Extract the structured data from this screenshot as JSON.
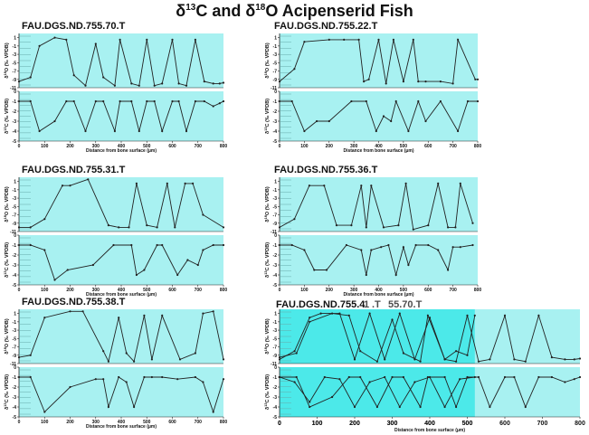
{
  "figure_title": {
    "pre": "δ",
    "sup1": "13",
    "mid": "C and δ",
    "sup2": "18",
    "post": "O Acipenserid Fish"
  },
  "colors": {
    "plot_bg": "#a8f1f1",
    "overlay_bg": "#2ee6e6",
    "line": "#222222",
    "axis": "#222222"
  },
  "chart_data": [
    {
      "type": "line",
      "title": "FAU.DGS.ND.755.70.T",
      "xlabel": "Distance from bone surface (μm)",
      "xlim": [
        0,
        800
      ],
      "x_ticks": [
        0,
        100,
        200,
        300,
        400,
        500,
        600,
        700,
        800
      ],
      "panels": [
        {
          "ylabel": "δ18O (‰ VPDB)",
          "ylim": [
            -11,
            2
          ],
          "y_ticks": [
            1,
            -1,
            -3,
            -5,
            -7,
            -9,
            -11
          ],
          "series": [
            {
              "x": [
                0,
                45,
                80,
                140,
                185,
                215,
                260,
                300,
                330,
                375,
                395,
                440,
                470,
                500,
                530,
                560,
                600,
                625,
                655,
                690,
                725,
                760,
                785,
                800
              ],
              "y": [
                -9.5,
                -8.5,
                -1,
                1,
                0.5,
                -8,
                -10.5,
                -0.5,
                -8.5,
                -10.5,
                0.5,
                -10,
                -10.5,
                0.5,
                -10.5,
                -10,
                0.5,
                -10,
                -10.5,
                0.5,
                -9.5,
                -10,
                -10,
                -9.8
              ]
            }
          ]
        },
        {
          "ylabel": "δ13C (‰ VPDB)",
          "ylim": [
            -5,
            0
          ],
          "y_ticks": [
            0,
            -1,
            -2,
            -3,
            -4,
            -5
          ],
          "series": [
            {
              "x": [
                0,
                45,
                80,
                140,
                185,
                215,
                260,
                300,
                330,
                375,
                395,
                440,
                470,
                500,
                530,
                560,
                600,
                625,
                655,
                690,
                725,
                760,
                785,
                800
              ],
              "y": [
                -1,
                -1,
                -4,
                -3,
                -1,
                -1,
                -4,
                -1,
                -1,
                -4,
                -1,
                -1,
                -4,
                -1,
                -1,
                -4,
                -1,
                -1,
                -4,
                -1,
                -1,
                -1.5,
                -1.2,
                -1
              ]
            }
          ]
        }
      ]
    },
    {
      "type": "line",
      "title": "FAU.DGS.ND.755.22.T",
      "xlabel": "Distance from bone surface (μm)",
      "xlim": [
        0,
        800
      ],
      "x_ticks": [
        0,
        100,
        200,
        300,
        400,
        500,
        600,
        700,
        800
      ],
      "panels": [
        {
          "ylabel": "δ18O (‰ VPDB)",
          "ylim": [
            -11,
            2
          ],
          "y_ticks": [
            1,
            -1,
            -3,
            -5,
            -7,
            -9,
            -11
          ],
          "series": [
            {
              "x": [
                0,
                60,
                100,
                200,
                260,
                320,
                340,
                360,
                400,
                430,
                460,
                500,
                540,
                560,
                590,
                650,
                700,
                720,
                790,
                800
              ],
              "y": [
                -9.5,
                -6.5,
                0,
                0.5,
                0.5,
                0.5,
                -9.5,
                -9,
                0.5,
                -10,
                0.5,
                -9.5,
                0.5,
                -9.5,
                -9.5,
                -9.5,
                -10,
                0.5,
                -9,
                -9
              ]
            }
          ]
        },
        {
          "ylabel": "δ13C (‰ VPDB)",
          "ylim": [
            -5,
            0
          ],
          "y_ticks": [
            0,
            -1,
            -2,
            -3,
            -4,
            -5
          ],
          "series": [
            {
              "x": [
                0,
                50,
                100,
                150,
                200,
                290,
                350,
                390,
                420,
                450,
                470,
                520,
                560,
                590,
                650,
                720,
                760,
                800
              ],
              "y": [
                -1,
                -1,
                -4,
                -3,
                -3,
                -1,
                -1,
                -4,
                -2.5,
                -3,
                -1,
                -4,
                -1,
                -3,
                -1,
                -4,
                -1,
                -1
              ]
            }
          ]
        }
      ]
    },
    {
      "type": "line",
      "title": "FAU.DGS.ND.755.31.T",
      "xlabel": "Distance from bone surface (μm)",
      "xlim": [
        0,
        800
      ],
      "x_ticks": [
        0,
        100,
        200,
        300,
        400,
        500,
        600,
        700,
        800
      ],
      "panels": [
        {
          "ylabel": "δ18O (‰ VPDB)",
          "ylim": [
            -11,
            2
          ],
          "y_ticks": [
            1,
            -1,
            -3,
            -5,
            -7,
            -9,
            -11
          ],
          "series": [
            {
              "x": [
                0,
                45,
                100,
                170,
                200,
                270,
                350,
                390,
                430,
                460,
                500,
                540,
                580,
                610,
                650,
                680,
                720,
                800
              ],
              "y": [
                -10,
                -10,
                -8,
                0,
                0,
                1.5,
                -9.5,
                -10,
                -10,
                0.5,
                -9.5,
                -10,
                0.5,
                -10,
                0.5,
                0.5,
                -7,
                -10
              ]
            }
          ]
        },
        {
          "ylabel": "δ13C (‰ VPDB)",
          "ylim": [
            -5,
            0
          ],
          "y_ticks": [
            0,
            -1,
            -2,
            -3,
            -4,
            -5
          ],
          "series": [
            {
              "x": [
                0,
                45,
                100,
                140,
                190,
                290,
                370,
                440,
                460,
                490,
                540,
                560,
                620,
                660,
                700,
                720,
                760,
                800
              ],
              "y": [
                -1,
                -1,
                -1.5,
                -4.5,
                -3.5,
                -3,
                -1,
                -1,
                -4,
                -3.5,
                -1,
                -1,
                -4,
                -2.5,
                -3,
                -1.5,
                -1,
                -1
              ]
            }
          ]
        }
      ]
    },
    {
      "type": "line",
      "title": "FAU.DGS.ND.755.36.T",
      "xlabel": "Distance from bone surface (μm)",
      "xlim": [
        0,
        800
      ],
      "x_ticks": [
        0,
        100,
        200,
        300,
        400,
        500,
        600,
        700,
        800
      ],
      "panels": [
        {
          "ylabel": "δ18O (‰ VPDB)",
          "ylim": [
            -11,
            2
          ],
          "y_ticks": [
            1,
            -1,
            -3,
            -5,
            -7,
            -9,
            -11
          ],
          "series": [
            {
              "x": [
                0,
                60,
                120,
                180,
                230,
                290,
                330,
                350,
                370,
                420,
                480,
                510,
                540,
                600,
                640,
                680,
                710,
                730,
                780
              ],
              "y": [
                -10,
                -8,
                0,
                0,
                -9.5,
                -9.5,
                0,
                -10,
                0,
                -10,
                -9.5,
                0.5,
                -10.5,
                -9.5,
                0.5,
                -10,
                -10,
                0.5,
                -9
              ]
            }
          ]
        },
        {
          "ylabel": "δ13C (‰ VPDB)",
          "ylim": [
            -5,
            0
          ],
          "y_ticks": [
            0,
            -1,
            -2,
            -3,
            -4,
            -5
          ],
          "series": [
            {
              "x": [
                0,
                50,
                100,
                140,
                190,
                270,
                330,
                350,
                370,
                410,
                440,
                470,
                500,
                520,
                550,
                600,
                640,
                680,
                700,
                730,
                780
              ],
              "y": [
                -1,
                -1,
                -1.5,
                -3.5,
                -3.5,
                -1,
                -1.5,
                -4,
                -1.5,
                -1.2,
                -1,
                -4,
                -1.2,
                -3,
                -1,
                -1,
                -1.5,
                -3.5,
                -1.2,
                -1.2,
                -1
              ]
            }
          ]
        }
      ]
    },
    {
      "type": "line",
      "title": "FAU.DGS.ND.755.38.T",
      "xlabel": "Distance from bone surface (μm)",
      "xlim": [
        0,
        800
      ],
      "x_ticks": [
        0,
        100,
        200,
        300,
        400,
        500,
        600,
        700,
        800
      ],
      "panels": [
        {
          "ylabel": "δ18O (‰ VPDB)",
          "ylim": [
            -11,
            2
          ],
          "y_ticks": [
            1,
            -1,
            -3,
            -5,
            -7,
            -9,
            -11
          ],
          "series": [
            {
              "x": [
                0,
                45,
                100,
                200,
                250,
                330,
                350,
                390,
                420,
                450,
                490,
                520,
                560,
                630,
                690,
                720,
                760,
                800
              ],
              "y": [
                -9.5,
                -9,
                0,
                1.5,
                1.5,
                -8,
                -10.5,
                0,
                -8.5,
                -10.5,
                0.5,
                -10,
                0.5,
                -10,
                -8.5,
                1,
                1.5,
                -10
              ]
            }
          ]
        },
        {
          "ylabel": "δ13C (‰ VPDB)",
          "ylim": [
            -5,
            0
          ],
          "y_ticks": [
            0,
            -1,
            -2,
            -3,
            -4,
            -5
          ],
          "series": [
            {
              "x": [
                0,
                45,
                100,
                200,
                300,
                330,
                350,
                390,
                420,
                450,
                490,
                520,
                560,
                620,
                690,
                720,
                760,
                800
              ],
              "y": [
                -1,
                -1,
                -4.5,
                -2,
                -1.2,
                -1.2,
                -4,
                -1,
                -1.5,
                -4,
                -1,
                -1,
                -1,
                -1.2,
                -1,
                -1.5,
                -4.5,
                -1.2
              ]
            }
          ]
        }
      ]
    },
    {
      "type": "line",
      "title": "FAU.DGS.ND.755.4",
      "title_fragments": [
        "1",
        ".T",
        "55.70.T"
      ],
      "xlabel": "Distance from bone surface (μm)",
      "xlim": [
        0,
        800
      ],
      "x_ticks": [
        0,
        100,
        200,
        300,
        400,
        500,
        600,
        700,
        800
      ],
      "x_ticks_overlay": [
        0,
        100,
        200,
        300,
        400,
        500
      ],
      "panels": [
        {
          "ylabel": "δ18O (‰ VPDB)",
          "ylim": [
            -11,
            2
          ],
          "y_ticks": [
            1,
            -1,
            -3,
            -5,
            -7,
            -9,
            -11
          ],
          "series": [
            {
              "x": [
                0,
                45,
                80,
                140,
                185,
                215,
                260,
                300,
                330,
                375,
                395,
                440,
                470,
                500,
                530,
                560,
                600,
                625,
                655,
                690,
                725,
                760,
                785,
                800
              ],
              "y": [
                -9.5,
                -8.5,
                -1,
                1,
                0.5,
                -8,
                -10.5,
                -0.5,
                -8.5,
                -10.5,
                0.5,
                -10,
                -10.5,
                0.5,
                -10.5,
                -10,
                0.5,
                -10,
                -10.5,
                0.5,
                -9.5,
                -10,
                -10,
                -9.8
              ]
            },
            {
              "x": [
                0,
                40,
                80,
                110,
                160,
                200,
                240,
                280,
                320,
                360,
                400,
                440,
                470,
                500,
                520
              ],
              "y": [
                -10,
                -8,
                0,
                1,
                1,
                -10,
                1,
                -10,
                1,
                -10,
                0,
                -10,
                -8,
                -9,
                0.5
              ]
            }
          ]
        },
        {
          "ylabel": "δ13C (‰ VPDB)",
          "ylim": [
            -5,
            0
          ],
          "y_ticks": [
            0,
            -1,
            -2,
            -3,
            -4,
            -5
          ],
          "series": [
            {
              "x": [
                0,
                45,
                80,
                140,
                185,
                215,
                260,
                300,
                330,
                375,
                395,
                440,
                470,
                500,
                530,
                560,
                600,
                625,
                655,
                690,
                725,
                760,
                785,
                800
              ],
              "y": [
                -1,
                -1,
                -4,
                -3,
                -1,
                -1,
                -4,
                -1,
                -1,
                -4,
                -1,
                -1,
                -4,
                -1,
                -1,
                -4,
                -1,
                -1,
                -4,
                -1,
                -1,
                -1.5,
                -1.2,
                -1
              ]
            },
            {
              "x": [
                0,
                40,
                80,
                120,
                160,
                200,
                240,
                280,
                320,
                360,
                400,
                440,
                480,
                520
              ],
              "y": [
                -1,
                -1.5,
                -3.5,
                -1,
                -1.2,
                -4,
                -1.5,
                -1,
                -4,
                -1.5,
                -1,
                -4,
                -1.2,
                -1
              ]
            }
          ]
        }
      ]
    }
  ]
}
